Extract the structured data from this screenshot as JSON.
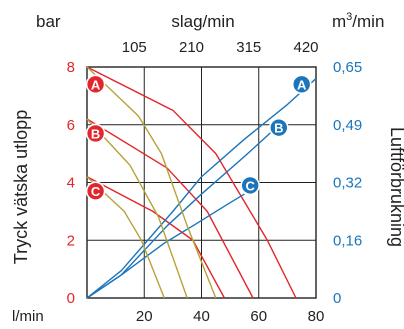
{
  "chart_data": {
    "type": "line",
    "title": "",
    "left_axis": {
      "label": "Tryck vätska utlopp",
      "unit": "bar",
      "ylim": [
        0,
        8
      ],
      "ticks": [
        0,
        2,
        4,
        6,
        8
      ],
      "color": "#e3262b"
    },
    "right_axis": {
      "label": "Luftförbrukning",
      "unit_prefix": "m",
      "unit_sup": "3",
      "unit_suffix": "/min",
      "ticks": [
        "0",
        "0,16",
        "0,32",
        "0,49",
        "0,65"
      ],
      "color": "#1a75bb"
    },
    "bottom_axis": {
      "unit": "l/min",
      "xlim": [
        0,
        80
      ],
      "ticks": [
        20,
        40,
        60,
        80
      ]
    },
    "top_axis": {
      "unit": "slag/min",
      "ticks": [
        "105",
        "210",
        "315",
        "420"
      ]
    },
    "grid": true,
    "colors": {
      "pressure": "#e3262b",
      "air": "#1a75bb",
      "secondary": "#b7a23a"
    },
    "series": [
      {
        "name": "A",
        "group": "pressure",
        "x": [
          0,
          30,
          45,
          63,
          73
        ],
        "y": [
          8,
          6.5,
          5,
          2,
          0
        ]
      },
      {
        "name": "B",
        "group": "pressure",
        "x": [
          0,
          28,
          42,
          58
        ],
        "y": [
          6.2,
          4.5,
          3,
          0
        ]
      },
      {
        "name": "C",
        "group": "pressure",
        "x": [
          0,
          23,
          37,
          48
        ],
        "y": [
          4.2,
          3,
          2,
          0
        ]
      },
      {
        "name": "A",
        "group": "air",
        "x": [
          0,
          12,
          30,
          40,
          55,
          70,
          80
        ],
        "y": [
          0,
          0.95,
          3.0,
          4.2,
          5.5,
          6.7,
          7.6
        ]
      },
      {
        "name": "B",
        "group": "air",
        "x": [
          0,
          12,
          28,
          40,
          55,
          65
        ],
        "y": [
          0,
          0.8,
          2.5,
          3.6,
          4.9,
          5.8
        ]
      },
      {
        "name": "C",
        "group": "air",
        "x": [
          0,
          12,
          27,
          37,
          50,
          55
        ],
        "y": [
          0,
          0.8,
          1.9,
          2.5,
          3.3,
          3.6
        ]
      },
      {
        "name": "",
        "group": "secondary",
        "x": [
          0,
          18,
          26,
          35,
          45
        ],
        "y": [
          8,
          6.3,
          5,
          2.5,
          0
        ]
      },
      {
        "name": "",
        "group": "secondary",
        "x": [
          0,
          15,
          25,
          35
        ],
        "y": [
          6.2,
          4.6,
          2.8,
          0
        ]
      },
      {
        "name": "",
        "group": "secondary",
        "x": [
          0,
          13,
          19,
          27
        ],
        "y": [
          4.2,
          3.0,
          2.0,
          0
        ]
      }
    ],
    "badges": [
      {
        "label": "A",
        "group": "pressure",
        "x": 3,
        "y": 7.4
      },
      {
        "label": "B",
        "group": "pressure",
        "x": 3,
        "y": 5.7
      },
      {
        "label": "C",
        "group": "pressure",
        "x": 3,
        "y": 3.7
      },
      {
        "label": "A",
        "group": "air",
        "x": 75,
        "y": 7.4
      },
      {
        "label": "B",
        "group": "air",
        "x": 67,
        "y": 5.9
      },
      {
        "label": "C",
        "group": "air",
        "x": 57,
        "y": 3.9
      }
    ]
  }
}
